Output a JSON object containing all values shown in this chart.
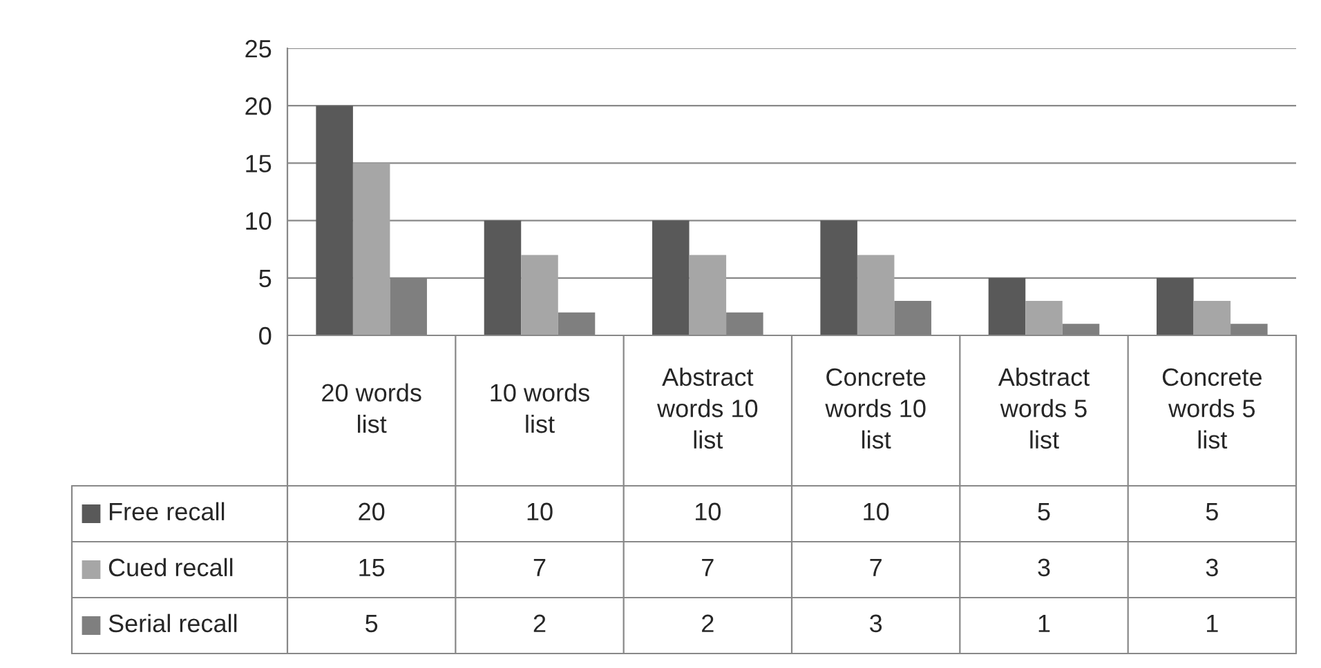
{
  "chart_data": {
    "type": "bar",
    "categories": [
      "20 words list",
      "10 words list",
      "Abstract words 10 list",
      "Concrete words 10 list",
      "Abstract words 5 list",
      "Concrete words 5 list"
    ],
    "series": [
      {
        "name": "Free recall",
        "color": "#595959",
        "values": [
          20,
          10,
          10,
          10,
          5,
          5
        ]
      },
      {
        "name": "Cued recall",
        "color": "#a6a6a6",
        "values": [
          15,
          7,
          7,
          7,
          3,
          3
        ]
      },
      {
        "name": "Serial recall",
        "color": "#7f7f7f",
        "values": [
          5,
          2,
          2,
          3,
          1,
          1
        ]
      }
    ],
    "ylim": [
      0,
      25
    ],
    "yticks": [
      0,
      5,
      10,
      15,
      20,
      25
    ],
    "grid": "y",
    "data_labels": true,
    "legend": "bottom left"
  }
}
